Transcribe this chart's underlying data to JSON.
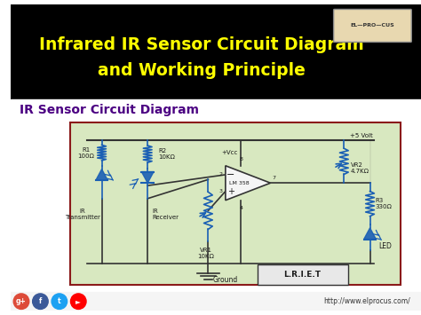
{
  "title_line1": "Infrared IR Sensor Circuit Diagram",
  "title_line2": "and Working Principle",
  "title_color": "#FFFF00",
  "title_bg": "#000000",
  "subtitle": "IR Sensor Circuit Diagram",
  "subtitle_color": "#4B0082",
  "bg_color": "#FFFFFF",
  "circuit_bg": "#D8E8C0",
  "circuit_border": "#8B1A1A",
  "url_text": "http://www.elprocus.com/",
  "lriet_text": "L.R.I.E.T",
  "ground_text": "Ground",
  "plus5v_text": "+5 Volt",
  "vcc_text": "+Vcc",
  "r1_text": "R1\n100Ω",
  "r2_text": "R2\n10KΩ",
  "vr1_text": "VR1\n10KΩ",
  "vr2_text": "VR2\n4.7KΩ",
  "r3_text": "R3\n330Ω",
  "lm358_text": "LM 358",
  "ir_tx_text": "IR\nTransmitter",
  "ir_rx_text": "IR\nReceiver",
  "led_text": "LED",
  "component_color": "#1a5fb4",
  "wire_color": "#333333",
  "label_color": "#1a1a1a",
  "social_colors": [
    "#dd4b39",
    "#3b5998",
    "#1da1f2",
    "#ff0000"
  ],
  "social_labels": [
    "g+",
    "f",
    "t",
    "►"
  ]
}
